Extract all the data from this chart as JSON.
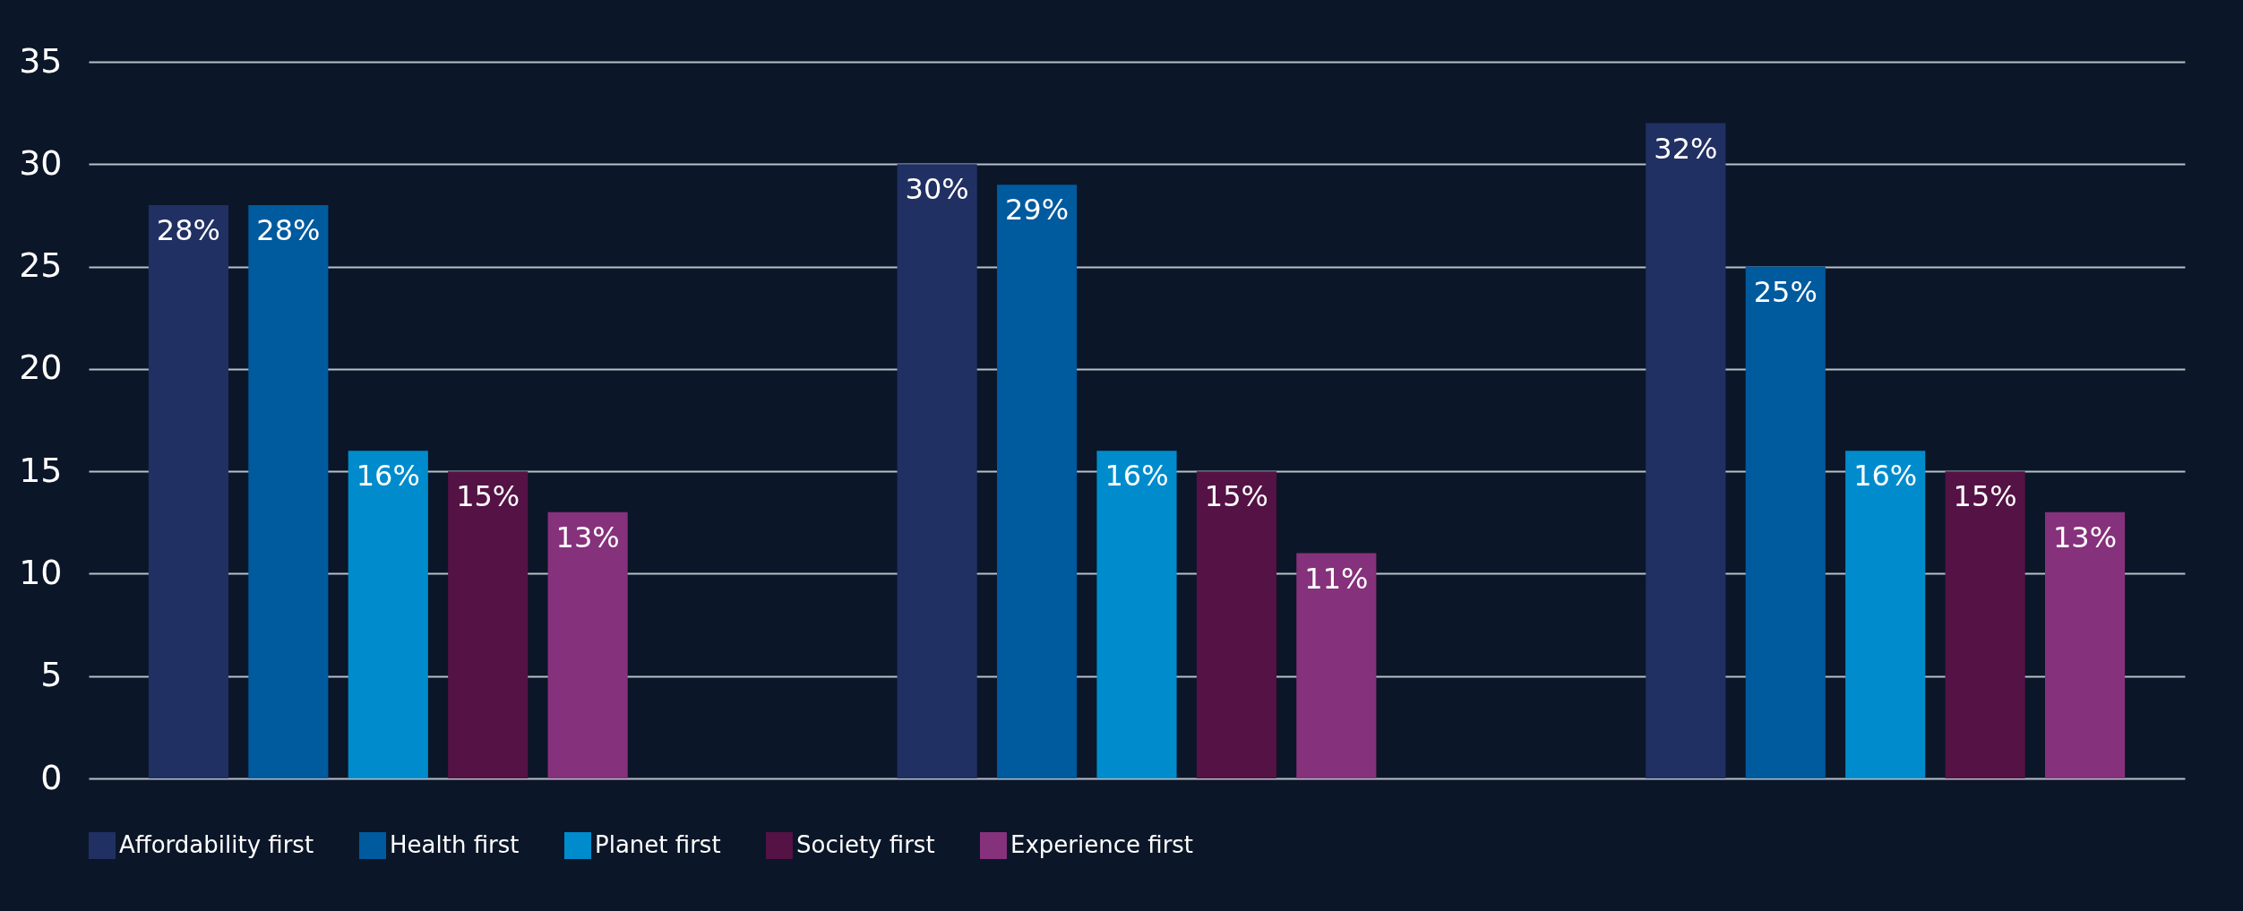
{
  "chart_data": {
    "type": "bar",
    "categories": [
      null,
      null,
      null
    ],
    "series": [
      {
        "name": "Affordability first",
        "color": "#213063",
        "values": [
          28,
          30,
          32
        ],
        "value_labels": [
          "28%",
          "30%",
          "32%"
        ]
      },
      {
        "name": "Health first",
        "color": "#005a9e",
        "values": [
          28,
          29,
          25
        ],
        "value_labels": [
          "28%",
          "29%",
          "25%"
        ]
      },
      {
        "name": "Planet first",
        "color": "#008ccc",
        "values": [
          16,
          16,
          16
        ],
        "value_labels": [
          "16%",
          "16%",
          "16%"
        ]
      },
      {
        "name": "Society first",
        "color": "#541245",
        "values": [
          15,
          15,
          15
        ],
        "value_labels": [
          "15%",
          "15%",
          "15%"
        ]
      },
      {
        "name": "Experience first",
        "color": "#86317b",
        "values": [
          13,
          11,
          13
        ],
        "value_labels": [
          "13%",
          "11%",
          "13%"
        ]
      }
    ],
    "ylim": [
      0,
      35
    ],
    "yticks": [
      0,
      5,
      10,
      15,
      20,
      25,
      30,
      35
    ],
    "grid": "y",
    "legend": "bottom"
  }
}
